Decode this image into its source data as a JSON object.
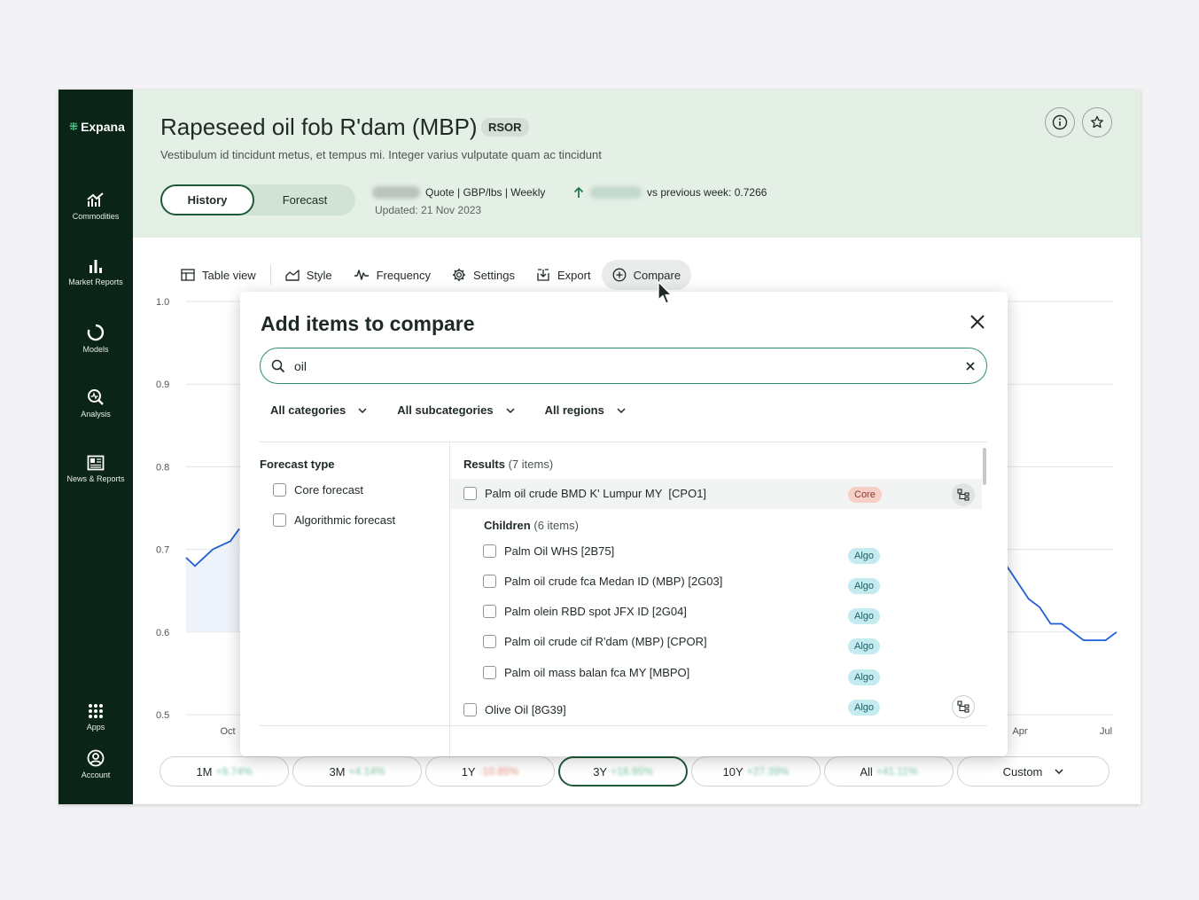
{
  "sidebar": {
    "brand": "Expana",
    "items": [
      {
        "label": "Commodities",
        "icon": "commodities-icon"
      },
      {
        "label": "Market Reports",
        "icon": "bar-chart-icon"
      },
      {
        "label": "Models",
        "icon": "models-icon"
      },
      {
        "label": "Analysis",
        "icon": "analysis-icon"
      },
      {
        "label": "News & Reports",
        "icon": "news-icon"
      },
      {
        "label": "Apps",
        "icon": "apps-grid-icon"
      },
      {
        "label": "Account",
        "icon": "account-icon"
      }
    ]
  },
  "header": {
    "title": "Rapeseed oil fob R'dam (MBP)",
    "code": "RSOR",
    "subtitle": "Vestibulum id tincidunt metus, et tempus mi. Integer varius vulputate quam ac tincidunt",
    "tabs": {
      "history": "History",
      "forecast": "Forecast"
    },
    "quote_info": "Quote | GBP/lbs | Weekly",
    "updated": "Updated: 21 Nov 2023",
    "vs_previous": "vs previous week: 0.7266"
  },
  "toolbar": {
    "table_view": "Table view",
    "style": "Style",
    "frequency": "Frequency",
    "settings": "Settings",
    "export": "Export",
    "compare": "Compare"
  },
  "chart_data": {
    "type": "line",
    "yticks": [
      "1.0",
      "0.9",
      "0.8",
      "0.7",
      "0.6",
      "0.5"
    ],
    "ylim": [
      0.5,
      1.0
    ],
    "xticks_visible": [
      "Oct",
      "Apr",
      "Jul"
    ],
    "series_left": {
      "name": "visible-left",
      "values": [
        0.69,
        0.68,
        0.69,
        0.7,
        0.705,
        0.71,
        0.725
      ]
    },
    "series_right": {
      "name": "visible-right",
      "values": [
        0.68,
        0.66,
        0.64,
        0.63,
        0.61,
        0.61,
        0.6,
        0.59,
        0.59,
        0.59,
        0.6
      ]
    }
  },
  "ranges": [
    {
      "label": "1M",
      "pct": "+9.74%",
      "neg": false,
      "active": false
    },
    {
      "label": "3M",
      "pct": "+4.14%",
      "neg": false,
      "active": false
    },
    {
      "label": "1Y",
      "pct": "-10.85%",
      "neg": true,
      "active": false
    },
    {
      "label": "3Y",
      "pct": "+18.95%",
      "neg": false,
      "active": true
    },
    {
      "label": "10Y",
      "pct": "+27.39%",
      "neg": false,
      "active": false
    },
    {
      "label": "All",
      "pct": "+41.11%",
      "neg": false,
      "active": false
    }
  ],
  "range_custom": "Custom",
  "modal": {
    "title": "Add items to compare",
    "search_value": "oil",
    "filters": {
      "categories": "All categories",
      "subcategories": "All subcategories",
      "regions": "All regions"
    },
    "forecast_type_title": "Forecast type",
    "forecast_types": [
      "Core forecast",
      "Algorithmic forecast"
    ],
    "results_title": "Results",
    "results_count": "(7 items)",
    "parent": {
      "name": "Palm oil crude BMD K' Lumpur MY  [CPO1]",
      "tag": "Core"
    },
    "children_title": "Children",
    "children_count": "(6 items)",
    "children": [
      {
        "name": "Palm Oil WHS [2B75]",
        "tag": "Algo"
      },
      {
        "name": "Palm oil crude fca Medan ID (MBP) [2G03]",
        "tag": "Algo"
      },
      {
        "name": "Palm olein RBD spot JFX ID [2G04]",
        "tag": "Algo"
      },
      {
        "name": "Palm oil crude cif R'dam (MBP) [CPOR]",
        "tag": "Algo"
      },
      {
        "name": "Palm oil mass balan fca MY [MBPO]",
        "tag": "Algo"
      }
    ],
    "last": {
      "name": "Olive Oil [8G39]",
      "tag": "Algo"
    }
  }
}
